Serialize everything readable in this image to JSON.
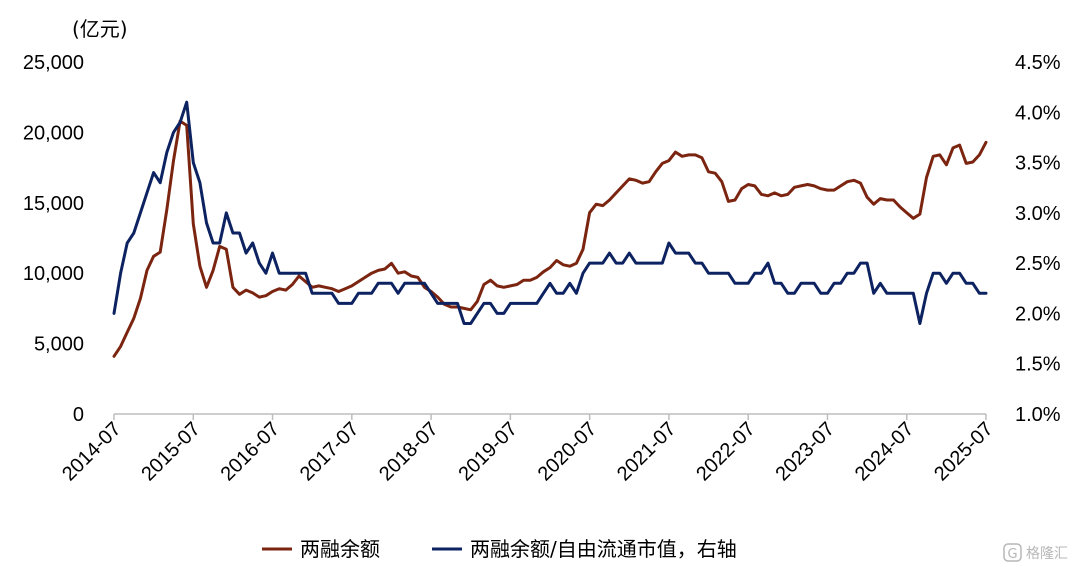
{
  "chart_data": {
    "type": "line",
    "left_unit": "(亿元)",
    "left_ticks": [
      "25,000",
      "20,000",
      "15,000",
      "10,000",
      "5,000",
      "0"
    ],
    "left_ylim": [
      0,
      25000
    ],
    "right_ticks": [
      "4.5%",
      "4.0%",
      "3.5%",
      "3.0%",
      "2.5%",
      "2.0%",
      "1.5%",
      "1.0%"
    ],
    "right_ylim": [
      1.0,
      4.5
    ],
    "x_ticks": [
      "2014-07",
      "2015-07",
      "2016-07",
      "2017-07",
      "2018-07",
      "2019-07",
      "2020-07",
      "2021-07",
      "2022-07",
      "2023-07",
      "2024-07",
      "2025-07"
    ],
    "x_range": [
      "2014-07",
      "2025-07"
    ],
    "grid": false,
    "legend_position": "bottom",
    "series": [
      {
        "name": "两融余额",
        "axis": "left",
        "color": "#7B2410",
        "points": [
          [
            "2014-07",
            4100
          ],
          [
            "2014-08",
            4800
          ],
          [
            "2014-09",
            5800
          ],
          [
            "2014-10",
            6800
          ],
          [
            "2014-11",
            8200
          ],
          [
            "2014-12",
            10200
          ],
          [
            "2015-01",
            11200
          ],
          [
            "2015-02",
            11500
          ],
          [
            "2015-03",
            14500
          ],
          [
            "2015-04",
            18000
          ],
          [
            "2015-05",
            20800
          ],
          [
            "2015-06",
            20500
          ],
          [
            "2015-07",
            13500
          ],
          [
            "2015-08",
            10500
          ],
          [
            "2015-09",
            9000
          ],
          [
            "2015-10",
            10200
          ],
          [
            "2015-11",
            11900
          ],
          [
            "2015-12",
            11700
          ],
          [
            "2016-01",
            9000
          ],
          [
            "2016-02",
            8500
          ],
          [
            "2016-03",
            8800
          ],
          [
            "2016-04",
            8600
          ],
          [
            "2016-05",
            8300
          ],
          [
            "2016-06",
            8400
          ],
          [
            "2016-07",
            8700
          ],
          [
            "2016-08",
            8900
          ],
          [
            "2016-09",
            8800
          ],
          [
            "2016-10",
            9200
          ],
          [
            "2016-11",
            9800
          ],
          [
            "2016-12",
            9400
          ],
          [
            "2017-01",
            9000
          ],
          [
            "2017-02",
            9100
          ],
          [
            "2017-03",
            9000
          ],
          [
            "2017-04",
            8900
          ],
          [
            "2017-05",
            8700
          ],
          [
            "2017-06",
            8900
          ],
          [
            "2017-07",
            9100
          ],
          [
            "2017-08",
            9400
          ],
          [
            "2017-09",
            9700
          ],
          [
            "2017-10",
            10000
          ],
          [
            "2017-11",
            10200
          ],
          [
            "2017-12",
            10300
          ],
          [
            "2018-01",
            10700
          ],
          [
            "2018-02",
            10000
          ],
          [
            "2018-03",
            10100
          ],
          [
            "2018-04",
            9800
          ],
          [
            "2018-05",
            9700
          ],
          [
            "2018-06",
            9000
          ],
          [
            "2018-07",
            8700
          ],
          [
            "2018-08",
            8300
          ],
          [
            "2018-09",
            7800
          ],
          [
            "2018-10",
            7600
          ],
          [
            "2018-11",
            7600
          ],
          [
            "2018-12",
            7500
          ],
          [
            "2019-01",
            7400
          ],
          [
            "2019-02",
            8000
          ],
          [
            "2019-03",
            9200
          ],
          [
            "2019-04",
            9500
          ],
          [
            "2019-05",
            9100
          ],
          [
            "2019-06",
            9000
          ],
          [
            "2019-07",
            9100
          ],
          [
            "2019-08",
            9200
          ],
          [
            "2019-09",
            9500
          ],
          [
            "2019-10",
            9500
          ],
          [
            "2019-11",
            9700
          ],
          [
            "2019-12",
            10100
          ],
          [
            "2020-01",
            10400
          ],
          [
            "2020-02",
            10900
          ],
          [
            "2020-03",
            10600
          ],
          [
            "2020-04",
            10500
          ],
          [
            "2020-05",
            10700
          ],
          [
            "2020-06",
            11700
          ],
          [
            "2020-07",
            14300
          ],
          [
            "2020-08",
            14900
          ],
          [
            "2020-09",
            14800
          ],
          [
            "2020-10",
            15200
          ],
          [
            "2020-11",
            15700
          ],
          [
            "2020-12",
            16200
          ],
          [
            "2021-01",
            16700
          ],
          [
            "2021-02",
            16600
          ],
          [
            "2021-03",
            16400
          ],
          [
            "2021-04",
            16500
          ],
          [
            "2021-05",
            17200
          ],
          [
            "2021-06",
            17800
          ],
          [
            "2021-07",
            18000
          ],
          [
            "2021-08",
            18600
          ],
          [
            "2021-09",
            18300
          ],
          [
            "2021-10",
            18400
          ],
          [
            "2021-11",
            18400
          ],
          [
            "2021-12",
            18200
          ],
          [
            "2022-01",
            17200
          ],
          [
            "2022-02",
            17100
          ],
          [
            "2022-03",
            16500
          ],
          [
            "2022-04",
            15100
          ],
          [
            "2022-05",
            15200
          ],
          [
            "2022-06",
            16000
          ],
          [
            "2022-07",
            16300
          ],
          [
            "2022-08",
            16200
          ],
          [
            "2022-09",
            15600
          ],
          [
            "2022-10",
            15500
          ],
          [
            "2022-11",
            15700
          ],
          [
            "2022-12",
            15500
          ],
          [
            "2023-01",
            15600
          ],
          [
            "2023-02",
            16100
          ],
          [
            "2023-03",
            16200
          ],
          [
            "2023-04",
            16300
          ],
          [
            "2023-05",
            16200
          ],
          [
            "2023-06",
            16000
          ],
          [
            "2023-07",
            15900
          ],
          [
            "2023-08",
            15900
          ],
          [
            "2023-09",
            16200
          ],
          [
            "2023-10",
            16500
          ],
          [
            "2023-11",
            16600
          ],
          [
            "2023-12",
            16400
          ],
          [
            "2024-01",
            15400
          ],
          [
            "2024-02",
            14900
          ],
          [
            "2024-03",
            15300
          ],
          [
            "2024-04",
            15200
          ],
          [
            "2024-05",
            15200
          ],
          [
            "2024-06",
            14700
          ],
          [
            "2024-07",
            14300
          ],
          [
            "2024-08",
            13900
          ],
          [
            "2024-09",
            14200
          ],
          [
            "2024-10",
            16800
          ],
          [
            "2024-11",
            18300
          ],
          [
            "2024-12",
            18400
          ],
          [
            "2025-01",
            17700
          ],
          [
            "2025-02",
            18900
          ],
          [
            "2025-03",
            19100
          ],
          [
            "2025-04",
            17800
          ],
          [
            "2025-05",
            17900
          ],
          [
            "2025-06",
            18400
          ],
          [
            "2025-07",
            19300
          ]
        ]
      },
      {
        "name": "两融余额/自由流通市值，右轴",
        "axis": "right",
        "color": "#0D2260",
        "points": [
          [
            "2014-07",
            2.0
          ],
          [
            "2014-08",
            2.4
          ],
          [
            "2014-09",
            2.7
          ],
          [
            "2014-10",
            2.8
          ],
          [
            "2014-11",
            3.0
          ],
          [
            "2014-12",
            3.2
          ],
          [
            "2015-01",
            3.4
          ],
          [
            "2015-02",
            3.3
          ],
          [
            "2015-03",
            3.6
          ],
          [
            "2015-04",
            3.8
          ],
          [
            "2015-05",
            3.9
          ],
          [
            "2015-06",
            4.1
          ],
          [
            "2015-07",
            3.5
          ],
          [
            "2015-08",
            3.3
          ],
          [
            "2015-09",
            2.9
          ],
          [
            "2015-10",
            2.7
          ],
          [
            "2015-11",
            2.7
          ],
          [
            "2015-12",
            3.0
          ],
          [
            "2016-01",
            2.8
          ],
          [
            "2016-02",
            2.8
          ],
          [
            "2016-03",
            2.6
          ],
          [
            "2016-04",
            2.7
          ],
          [
            "2016-05",
            2.5
          ],
          [
            "2016-06",
            2.4
          ],
          [
            "2016-07",
            2.6
          ],
          [
            "2016-08",
            2.4
          ],
          [
            "2016-09",
            2.4
          ],
          [
            "2016-10",
            2.4
          ],
          [
            "2016-11",
            2.4
          ],
          [
            "2016-12",
            2.4
          ],
          [
            "2017-01",
            2.2
          ],
          [
            "2017-02",
            2.2
          ],
          [
            "2017-03",
            2.2
          ],
          [
            "2017-04",
            2.2
          ],
          [
            "2017-05",
            2.1
          ],
          [
            "2017-06",
            2.1
          ],
          [
            "2017-07",
            2.1
          ],
          [
            "2017-08",
            2.2
          ],
          [
            "2017-09",
            2.2
          ],
          [
            "2017-10",
            2.2
          ],
          [
            "2017-11",
            2.3
          ],
          [
            "2017-12",
            2.3
          ],
          [
            "2018-01",
            2.3
          ],
          [
            "2018-02",
            2.2
          ],
          [
            "2018-03",
            2.3
          ],
          [
            "2018-04",
            2.3
          ],
          [
            "2018-05",
            2.3
          ],
          [
            "2018-06",
            2.3
          ],
          [
            "2018-07",
            2.2
          ],
          [
            "2018-08",
            2.1
          ],
          [
            "2018-09",
            2.1
          ],
          [
            "2018-10",
            2.1
          ],
          [
            "2018-11",
            2.1
          ],
          [
            "2018-12",
            1.9
          ],
          [
            "2019-01",
            1.9
          ],
          [
            "2019-02",
            2.0
          ],
          [
            "2019-03",
            2.1
          ],
          [
            "2019-04",
            2.1
          ],
          [
            "2019-05",
            2.0
          ],
          [
            "2019-06",
            2.0
          ],
          [
            "2019-07",
            2.1
          ],
          [
            "2019-08",
            2.1
          ],
          [
            "2019-09",
            2.1
          ],
          [
            "2019-10",
            2.1
          ],
          [
            "2019-11",
            2.1
          ],
          [
            "2019-12",
            2.2
          ],
          [
            "2020-01",
            2.3
          ],
          [
            "2020-02",
            2.2
          ],
          [
            "2020-03",
            2.2
          ],
          [
            "2020-04",
            2.3
          ],
          [
            "2020-05",
            2.2
          ],
          [
            "2020-06",
            2.4
          ],
          [
            "2020-07",
            2.5
          ],
          [
            "2020-08",
            2.5
          ],
          [
            "2020-09",
            2.5
          ],
          [
            "2020-10",
            2.6
          ],
          [
            "2020-11",
            2.5
          ],
          [
            "2020-12",
            2.5
          ],
          [
            "2021-01",
            2.6
          ],
          [
            "2021-02",
            2.5
          ],
          [
            "2021-03",
            2.5
          ],
          [
            "2021-04",
            2.5
          ],
          [
            "2021-05",
            2.5
          ],
          [
            "2021-06",
            2.5
          ],
          [
            "2021-07",
            2.7
          ],
          [
            "2021-08",
            2.6
          ],
          [
            "2021-09",
            2.6
          ],
          [
            "2021-10",
            2.6
          ],
          [
            "2021-11",
            2.5
          ],
          [
            "2021-12",
            2.5
          ],
          [
            "2022-01",
            2.4
          ],
          [
            "2022-02",
            2.4
          ],
          [
            "2022-03",
            2.4
          ],
          [
            "2022-04",
            2.4
          ],
          [
            "2022-05",
            2.3
          ],
          [
            "2022-06",
            2.3
          ],
          [
            "2022-07",
            2.3
          ],
          [
            "2022-08",
            2.4
          ],
          [
            "2022-09",
            2.4
          ],
          [
            "2022-10",
            2.5
          ],
          [
            "2022-11",
            2.3
          ],
          [
            "2022-12",
            2.3
          ],
          [
            "2023-01",
            2.2
          ],
          [
            "2023-02",
            2.2
          ],
          [
            "2023-03",
            2.3
          ],
          [
            "2023-04",
            2.3
          ],
          [
            "2023-05",
            2.3
          ],
          [
            "2023-06",
            2.2
          ],
          [
            "2023-07",
            2.2
          ],
          [
            "2023-08",
            2.3
          ],
          [
            "2023-09",
            2.3
          ],
          [
            "2023-10",
            2.4
          ],
          [
            "2023-11",
            2.4
          ],
          [
            "2023-12",
            2.5
          ],
          [
            "2024-01",
            2.5
          ],
          [
            "2024-02",
            2.2
          ],
          [
            "2024-03",
            2.3
          ],
          [
            "2024-04",
            2.2
          ],
          [
            "2024-05",
            2.2
          ],
          [
            "2024-06",
            2.2
          ],
          [
            "2024-07",
            2.2
          ],
          [
            "2024-08",
            2.2
          ],
          [
            "2024-09",
            1.9
          ],
          [
            "2024-10",
            2.2
          ],
          [
            "2024-11",
            2.4
          ],
          [
            "2024-12",
            2.4
          ],
          [
            "2025-01",
            2.3
          ],
          [
            "2025-02",
            2.4
          ],
          [
            "2025-03",
            2.4
          ],
          [
            "2025-04",
            2.3
          ],
          [
            "2025-05",
            2.3
          ],
          [
            "2025-06",
            2.2
          ],
          [
            "2025-07",
            2.2
          ]
        ]
      }
    ]
  },
  "watermark": {
    "text": "格隆汇",
    "icon": "g-logo-icon"
  }
}
